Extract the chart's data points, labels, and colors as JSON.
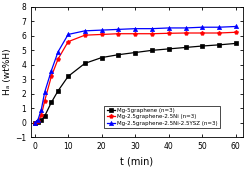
{
  "title": "",
  "xlabel": "t (min)",
  "ylabel": "Hₐ (wt%H)",
  "xlim": [
    -1,
    62
  ],
  "ylim": [
    -1,
    8
  ],
  "yticks": [
    -1,
    0,
    1,
    2,
    3,
    4,
    5,
    6,
    7,
    8
  ],
  "xticks": [
    0,
    10,
    20,
    30,
    40,
    50,
    60
  ],
  "series": [
    {
      "label": "Mg-5graphene (n=3)",
      "color": "#000000",
      "marker": "s",
      "t": [
        0,
        1,
        2,
        3,
        5,
        7,
        10,
        15,
        20,
        25,
        30,
        35,
        40,
        45,
        50,
        55,
        60
      ],
      "H": [
        0,
        0.05,
        0.15,
        0.45,
        1.4,
        2.2,
        3.2,
        4.1,
        4.5,
        4.7,
        4.85,
        5.0,
        5.1,
        5.2,
        5.3,
        5.38,
        5.48
      ]
    },
    {
      "label": "Mg-2.5graphene-2.5Ni (n=3)",
      "color": "#ff0000",
      "marker": "p",
      "t": [
        0,
        1,
        2,
        3,
        5,
        7,
        10,
        15,
        20,
        25,
        30,
        35,
        40,
        45,
        50,
        55,
        60
      ],
      "H": [
        0,
        0.1,
        0.5,
        1.5,
        3.2,
        4.4,
        5.6,
        6.05,
        6.1,
        6.15,
        6.15,
        6.15,
        6.18,
        6.2,
        6.2,
        6.2,
        6.25
      ]
    },
    {
      "label": "Mg-2.5graphene-2.5Ni-2.5YSZ (n=3)",
      "color": "#0000ff",
      "marker": "^",
      "t": [
        0,
        1,
        2,
        3,
        5,
        7,
        10,
        15,
        20,
        25,
        30,
        35,
        40,
        45,
        50,
        55,
        60
      ],
      "H": [
        0,
        0.2,
        0.9,
        2.1,
        3.6,
        4.9,
        6.1,
        6.35,
        6.4,
        6.45,
        6.5,
        6.5,
        6.55,
        6.55,
        6.6,
        6.6,
        6.65
      ]
    }
  ],
  "legend_loc": "center right",
  "bg_color": "#ffffff",
  "marker_size": 3.0,
  "linewidth": 0.9
}
